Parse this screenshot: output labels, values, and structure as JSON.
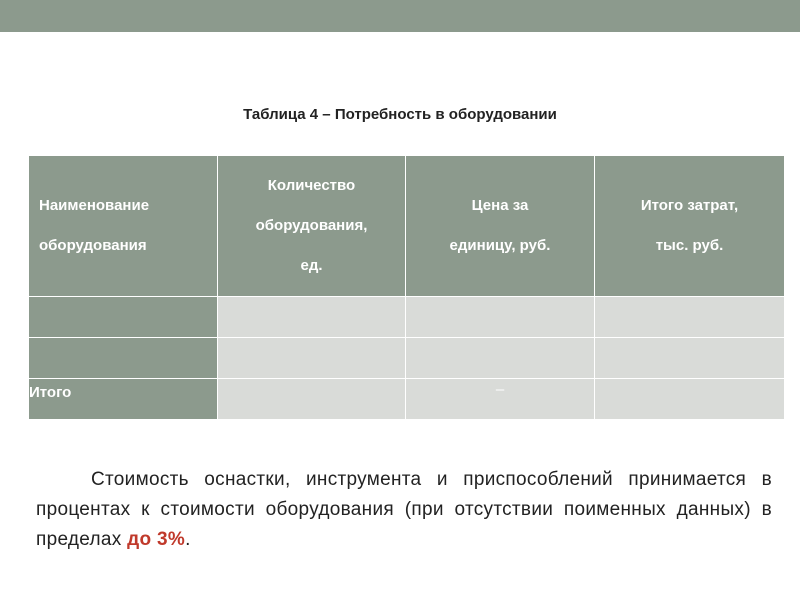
{
  "table": {
    "caption": "Таблица 4 – Потребность в оборудовании",
    "headers": [
      [
        "Наименование",
        "оборудования"
      ],
      [
        "Количество",
        "оборудования,",
        "ед."
      ],
      [
        "Цена за",
        "единицу, руб."
      ],
      [
        "Итого затрат,",
        "тыс. руб."
      ]
    ],
    "rows": [
      [
        "",
        "",
        "",
        ""
      ],
      [
        "",
        "",
        "",
        ""
      ]
    ],
    "total_row": [
      "Итого",
      "",
      "–",
      ""
    ]
  },
  "paragraph": {
    "text": "Стоимость оснастки, инструмента и приспособлений принимается в процентах к стоимости оборудования (при отсутствии поименных данных) в пределах ",
    "highlight": "до 3%",
    "end": "."
  },
  "colors": {
    "header_bg": "#8c9a8d",
    "cell_bg": "#d9dbd8",
    "highlight": "#c0392b"
  }
}
